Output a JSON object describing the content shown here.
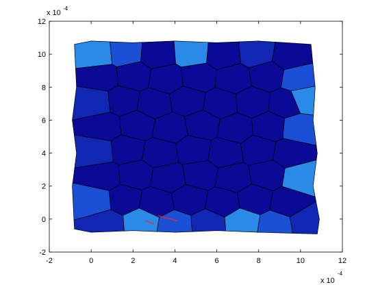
{
  "chart_data": {
    "type": "scatter",
    "description_kind": "voronoi-grain-mesh",
    "x_ticks": [
      "-2",
      "0",
      "2",
      "4",
      "6",
      "8",
      "10",
      "12"
    ],
    "y_ticks": [
      "-2",
      "0",
      "2",
      "4",
      "6",
      "8",
      "10",
      "12"
    ],
    "x_exponent_label": "x 10",
    "x_exponent_power": "-4",
    "y_exponent_label": "x 10",
    "y_exponent_power": "-4",
    "xlim": [
      -2,
      12
    ],
    "ylim": [
      -2,
      12
    ],
    "grid": false,
    "colors": {
      "interior_grain": "#0a0a96",
      "edge_grain_light": "#2a8ae8",
      "edge_grain_mid": "#1b4fd6",
      "edge_grain_dark": "#1226b4",
      "grain_edge": "#000000",
      "crack": "#ff2020",
      "axes": "#000000"
    },
    "body_outline": [
      [
        -0.8,
        10.6
      ],
      [
        0.0,
        10.8
      ],
      [
        2.0,
        10.7
      ],
      [
        4.0,
        10.8
      ],
      [
        6.0,
        10.7
      ],
      [
        8.0,
        10.8
      ],
      [
        10.5,
        10.6
      ],
      [
        10.7,
        8.0
      ],
      [
        10.6,
        6.0
      ],
      [
        10.8,
        4.0
      ],
      [
        10.6,
        2.0
      ],
      [
        10.9,
        0.0
      ],
      [
        10.8,
        -0.9
      ],
      [
        8.0,
        -0.8
      ],
      [
        6.0,
        -0.7
      ],
      [
        4.0,
        -0.8
      ],
      [
        2.0,
        -0.7
      ],
      [
        0.0,
        -0.8
      ],
      [
        -0.8,
        -0.6
      ],
      [
        -0.9,
        2.0
      ],
      [
        -0.7,
        4.0
      ],
      [
        -0.9,
        6.0
      ],
      [
        -0.7,
        8.0
      ]
    ],
    "grain_seeds": [
      [
        0.3,
        10.0
      ],
      [
        1.6,
        10.1
      ],
      [
        3.2,
        10.0
      ],
      [
        4.8,
        10.1
      ],
      [
        6.3,
        10.0
      ],
      [
        7.9,
        10.1
      ],
      [
        9.5,
        9.9
      ],
      [
        0.5,
        8.6
      ],
      [
        2.0,
        8.7
      ],
      [
        3.6,
        8.5
      ],
      [
        5.1,
        8.6
      ],
      [
        6.8,
        8.5
      ],
      [
        8.4,
        8.7
      ],
      [
        9.9,
        8.5
      ],
      [
        0.2,
        7.1
      ],
      [
        1.5,
        7.2
      ],
      [
        3.0,
        7.0
      ],
      [
        4.6,
        7.2
      ],
      [
        6.2,
        7.0
      ],
      [
        7.7,
        7.1
      ],
      [
        9.3,
        7.0
      ],
      [
        10.2,
        7.3
      ],
      [
        0.6,
        5.6
      ],
      [
        2.2,
        5.7
      ],
      [
        3.8,
        5.5
      ],
      [
        5.3,
        5.7
      ],
      [
        6.9,
        5.5
      ],
      [
        8.5,
        5.6
      ],
      [
        9.9,
        5.5
      ],
      [
        0.3,
        4.1
      ],
      [
        1.7,
        4.2
      ],
      [
        3.3,
        4.0
      ],
      [
        4.9,
        4.2
      ],
      [
        6.4,
        4.0
      ],
      [
        8.0,
        4.2
      ],
      [
        9.5,
        4.0
      ],
      [
        0.6,
        2.6
      ],
      [
        2.1,
        2.7
      ],
      [
        3.7,
        2.5
      ],
      [
        5.2,
        2.7
      ],
      [
        6.8,
        2.5
      ],
      [
        8.4,
        2.7
      ],
      [
        10.0,
        2.5
      ],
      [
        0.2,
        1.1
      ],
      [
        1.6,
        1.2
      ],
      [
        3.1,
        1.0
      ],
      [
        4.7,
        1.2
      ],
      [
        6.3,
        1.0
      ],
      [
        7.8,
        1.2
      ],
      [
        9.4,
        1.0
      ],
      [
        0.7,
        -0.3
      ],
      [
        2.4,
        -0.2
      ],
      [
        4.0,
        -0.4
      ],
      [
        5.6,
        -0.3
      ],
      [
        7.2,
        -0.2
      ],
      [
        8.8,
        -0.4
      ],
      [
        10.3,
        -0.2
      ]
    ],
    "crack_segments": [
      [
        [
          2.6,
          -0.1
        ],
        [
          3.0,
          -0.3
        ]
      ],
      [
        [
          3.2,
          0.2
        ],
        [
          4.1,
          -0.1
        ]
      ]
    ]
  }
}
